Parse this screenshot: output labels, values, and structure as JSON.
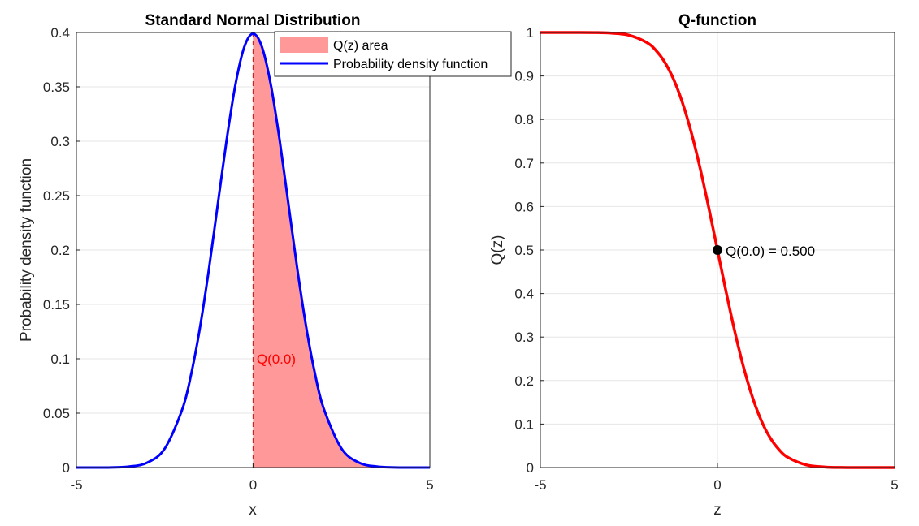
{
  "colors": {
    "pdf_line": "#0000ff",
    "shade": "#ff9999",
    "q_line": "#ff0000",
    "annotation_text": "#ff0000",
    "marker": "#000000",
    "grid": "#e6e6e6",
    "axis": "#262626"
  },
  "chart_data": [
    {
      "type": "area",
      "title": "Standard Normal Distribution",
      "xlabel": "x",
      "ylabel": "Probability density function",
      "xlim": [
        -5,
        5
      ],
      "ylim": [
        0,
        0.4
      ],
      "xticks": [
        -5,
        0,
        5
      ],
      "xtick_labels": [
        "-5",
        "0",
        "5"
      ],
      "yticks": [
        0,
        0.05,
        0.1,
        0.15,
        0.2,
        0.25,
        0.3,
        0.35,
        0.4
      ],
      "ytick_labels": [
        "0",
        "0.05",
        "0.1",
        "0.15",
        "0.2",
        "0.25",
        "0.3",
        "0.35",
        "0.4"
      ],
      "grid": true,
      "legend_position": "top-right",
      "series": [
        {
          "name": "Q(z) area",
          "kind": "shaded-area",
          "x": [
            0,
            0.25,
            0.5,
            0.75,
            1,
            1.25,
            1.5,
            1.75,
            2,
            2.5,
            3,
            3.5,
            4,
            4.5,
            5
          ],
          "y": [
            0.3989,
            0.3867,
            0.3521,
            0.3011,
            0.242,
            0.1826,
            0.1295,
            0.0863,
            0.054,
            0.0175,
            0.0044,
            0.0009,
            0.0001,
            0.0,
            0.0
          ]
        },
        {
          "name": "Probability density function",
          "kind": "line",
          "x": [
            -5,
            -4.5,
            -4,
            -3.5,
            -3,
            -2.5,
            -2,
            -1.75,
            -1.5,
            -1.25,
            -1,
            -0.75,
            -0.5,
            -0.25,
            0,
            0.25,
            0.5,
            0.75,
            1,
            1.25,
            1.5,
            1.75,
            2,
            2.5,
            3,
            3.5,
            4,
            4.5,
            5
          ],
          "y": [
            0.0,
            0.0,
            0.0001,
            0.0009,
            0.0044,
            0.0175,
            0.054,
            0.0863,
            0.1295,
            0.1826,
            0.242,
            0.3011,
            0.3521,
            0.3867,
            0.3989,
            0.3867,
            0.3521,
            0.3011,
            0.242,
            0.1826,
            0.1295,
            0.0863,
            0.054,
            0.0175,
            0.0044,
            0.0009,
            0.0001,
            0.0,
            0.0
          ]
        }
      ],
      "threshold_line": {
        "x": 0,
        "style": "dashed"
      },
      "annotation": {
        "text": "Q(0.0)",
        "x": 0.1,
        "y": 0.1
      }
    },
    {
      "type": "line",
      "title": "Q-function",
      "xlabel": "z",
      "ylabel": "Q(z)",
      "xlim": [
        -5,
        5
      ],
      "ylim": [
        0,
        1
      ],
      "xticks": [
        -5,
        0,
        5
      ],
      "xtick_labels": [
        "-5",
        "0",
        "5"
      ],
      "yticks": [
        0,
        0.1,
        0.2,
        0.3,
        0.4,
        0.5,
        0.6,
        0.7,
        0.8,
        0.9,
        1
      ],
      "ytick_labels": [
        "0",
        "0.1",
        "0.2",
        "0.3",
        "0.4",
        "0.5",
        "0.6",
        "0.7",
        "0.8",
        "0.9",
        "1"
      ],
      "grid": true,
      "series": [
        {
          "kind": "line",
          "x": [
            -5,
            -4.5,
            -4,
            -3.5,
            -3,
            -2.5,
            -2,
            -1.75,
            -1.5,
            -1.25,
            -1,
            -0.75,
            -0.5,
            -0.25,
            0,
            0.25,
            0.5,
            0.75,
            1,
            1.25,
            1.5,
            1.75,
            2,
            2.5,
            3,
            3.5,
            4,
            4.5,
            5
          ],
          "y": [
            1.0,
            1.0,
            1.0,
            0.9998,
            0.9987,
            0.9938,
            0.9772,
            0.9599,
            0.9332,
            0.8944,
            0.8413,
            0.7734,
            0.6915,
            0.5987,
            0.5,
            0.4013,
            0.3085,
            0.2266,
            0.1587,
            0.1056,
            0.0668,
            0.0401,
            0.0228,
            0.0062,
            0.0013,
            0.0002,
            0.0,
            0.0,
            0.0
          ]
        }
      ],
      "marker": {
        "x": 0,
        "y": 0.5,
        "label": "Q(0.0) = 0.500"
      }
    }
  ]
}
